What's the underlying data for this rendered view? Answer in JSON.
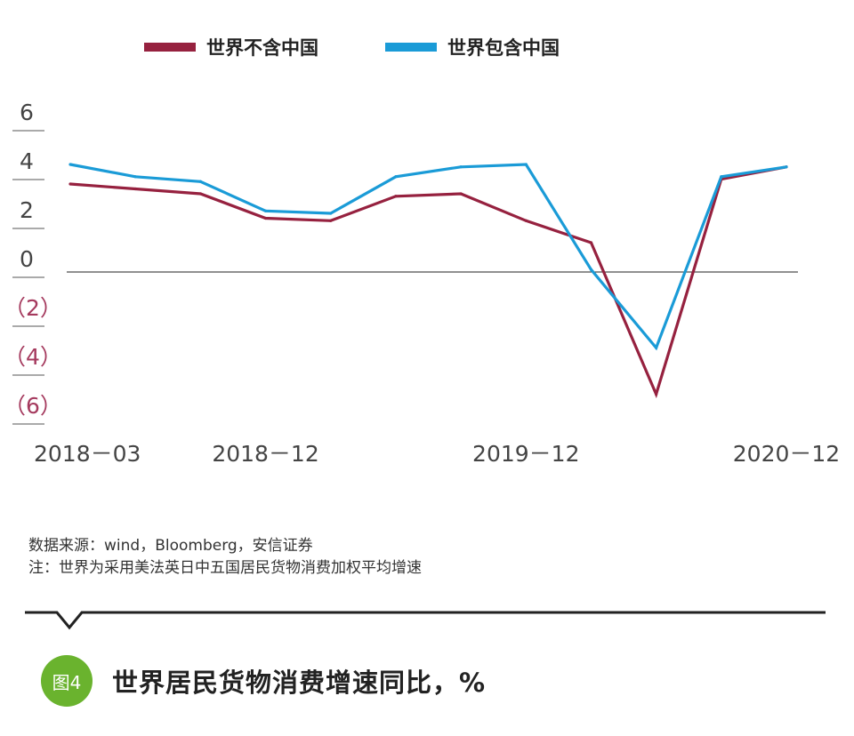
{
  "chart_data": {
    "type": "line",
    "title": "世界居民货物消费增速同比，%",
    "xlabel": "",
    "ylabel": "",
    "x": [
      "2018-03",
      "2018-06",
      "2018-09",
      "2018-12",
      "2019-03",
      "2019-06",
      "2019-09",
      "2019-12",
      "2020-03",
      "2020-06",
      "2020-09",
      "2020-12"
    ],
    "series": [
      {
        "name": "世界不含中国",
        "color": "#96213f",
        "values": [
          3.6,
          3.4,
          3.2,
          2.2,
          2.1,
          3.1,
          3.2,
          2.1,
          1.2,
          -5.0,
          3.8,
          4.3
        ]
      },
      {
        "name": "世界包含中国",
        "color": "#1a9bd7",
        "values": [
          4.4,
          3.9,
          3.7,
          2.5,
          2.4,
          3.9,
          4.3,
          4.4,
          0.1,
          -3.1,
          3.9,
          4.3
        ]
      }
    ],
    "ylim": [
      -6,
      6
    ],
    "yticks": [
      6,
      4,
      2,
      0,
      -2,
      -4,
      -6
    ],
    "ytick_labels": [
      "6",
      "4",
      "2",
      "0",
      "（2）",
      "（4）",
      "（6）"
    ],
    "xtick_labels": [
      {
        "label": "2018－03",
        "at": "2018-03"
      },
      {
        "label": "2018－12",
        "at": "2018-12"
      },
      {
        "label": "2019－12",
        "at": "2019-12"
      },
      {
        "label": "2020－12",
        "at": "2020-12"
      }
    ],
    "grid": false,
    "legend": "top"
  },
  "notes": {
    "source": "数据来源：wind，Bloomberg，安信证券",
    "note": "注：世界为采用美法英日中五国居民货物消费加权平均增速"
  },
  "figure": {
    "badge": "图4",
    "title": "世界居民货物消费增速同比，%",
    "badge_color": "#6ab32e"
  }
}
